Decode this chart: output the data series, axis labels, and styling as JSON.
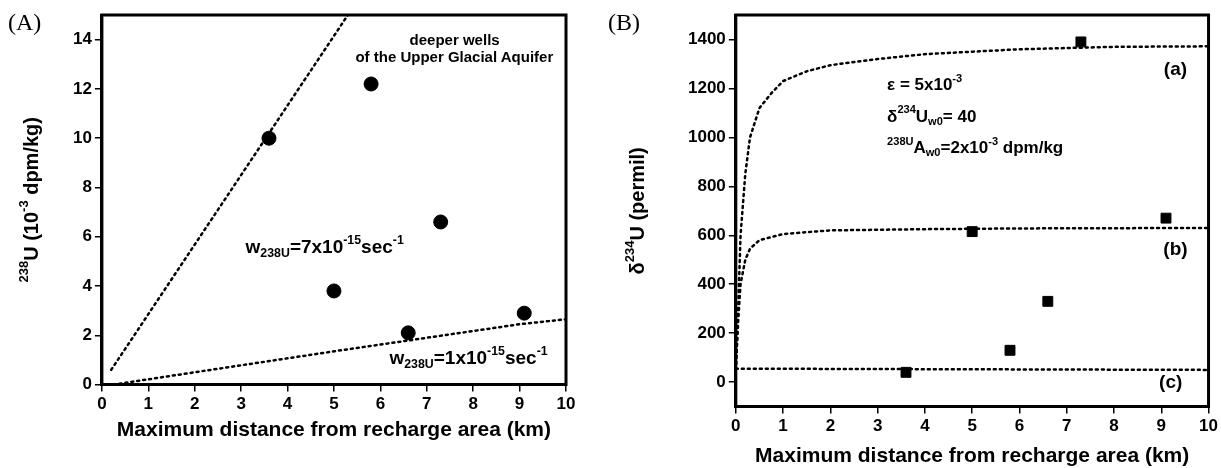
{
  "chart_data": [
    {
      "type": "scatter",
      "title": "(A)",
      "xlabel": "Maximum distance from recharge area (km)",
      "ylabel": "$^{238}$U (10$^{-3}$ dpm/kg)",
      "xlim": [
        0,
        10
      ],
      "xticks": [
        0,
        1,
        2,
        3,
        4,
        5,
        6,
        7,
        8,
        9,
        10
      ],
      "ylim": [
        0,
        15
      ],
      "yticks": [
        0,
        2,
        4,
        6,
        8,
        10,
        12,
        14
      ],
      "grid": false,
      "legend": false,
      "marker": "circle",
      "series": [
        {
          "color": "#000000",
          "x": [
            3.6,
            5.8,
            7.3,
            5.0,
            6.6,
            9.1
          ],
          "values": [
            10,
            12.2,
            6.6,
            3.8,
            2.1,
            2.9
          ]
        },
        {
          "type": "line",
          "color": "#000000",
          "marker": "none",
          "line_style": "dotted",
          "x": [
            0.2,
            5.3
          ],
          "values": [
            0.6,
            15
          ]
        },
        {
          "type": "line",
          "color": "#000000",
          "marker": "none",
          "line_style": "dotted",
          "x": [
            0.25,
            2,
            5,
            9,
            10
          ],
          "values": [
            0,
            0.5,
            1.35,
            2.45,
            2.65
          ]
        }
      ],
      "annotations": [
        "deeper wells",
        "of the Upper Glacial Aquifer",
        "w$_{238U}$=7x10$^{-15}$sec$^{-1}$",
        "w$_{238U}$=1x10$^{-15}$sec$^{-1}$"
      ]
    },
    {
      "type": "scatter",
      "title": "(B)",
      "xlabel": "Maximum distance from recharge area (km)",
      "ylabel": "δ$^{234}$U (permil)",
      "xlim": [
        0,
        10
      ],
      "xticks": [
        0,
        1,
        2,
        3,
        4,
        5,
        6,
        7,
        8,
        9,
        10
      ],
      "ylim": [
        -100,
        1500
      ],
      "yticks": [
        0,
        200,
        400,
        600,
        800,
        1000,
        1200,
        1400
      ],
      "grid": false,
      "legend": false,
      "marker": "square",
      "series": [
        {
          "color": "#000000",
          "x": [
            3.6,
            5.0,
            5.8,
            6.6,
            7.3,
            9.1
          ],
          "values": [
            40,
            615,
            130,
            330,
            1390,
            670
          ]
        },
        {
          "type": "line",
          "color": "#000000",
          "marker": "none",
          "line_style": "dotted",
          "x": [
            0,
            0.05,
            0.1,
            0.2,
            0.3,
            0.5,
            0.75,
            1,
            1.5,
            2,
            3,
            4,
            5,
            6,
            7,
            8,
            10
          ],
          "values": [
            50,
            300,
            600,
            850,
            1000,
            1120,
            1180,
            1230,
            1270,
            1295,
            1320,
            1340,
            1350,
            1360,
            1365,
            1370,
            1372
          ]
        },
        {
          "type": "line",
          "color": "#000000",
          "marker": "none",
          "line_style": "dotted",
          "x": [
            0,
            0.05,
            0.1,
            0.2,
            0.3,
            0.5,
            1,
            2,
            4,
            6,
            10
          ],
          "values": [
            50,
            250,
            400,
            500,
            545,
            580,
            605,
            620,
            625,
            628,
            630
          ]
        },
        {
          "type": "line",
          "color": "#000000",
          "marker": "none",
          "line_style": "dotted",
          "x": [
            0,
            10
          ],
          "values": [
            55,
            50
          ]
        }
      ],
      "annotations": [
        "ε = 5x10$^{-3}$",
        "δ$^{234}$U$_{w0}$= 40",
        "$^{238U}$A$_{w0}$=2x10$^{-3}$ dpm/kg",
        "(a)",
        "(b)",
        "(c)"
      ]
    }
  ]
}
